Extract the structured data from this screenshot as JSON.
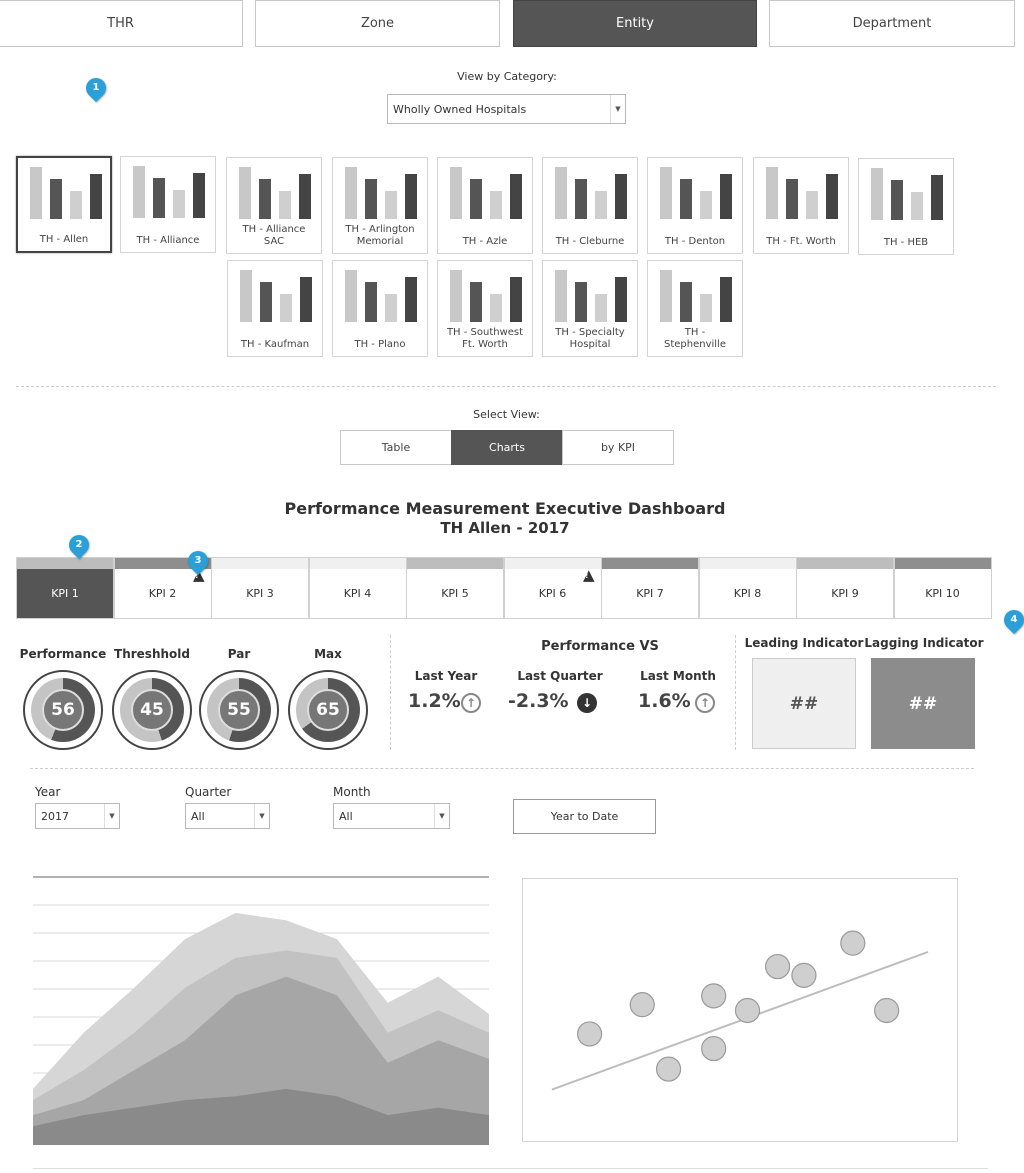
{
  "top_tabs": [
    {
      "label": "THR",
      "active": false
    },
    {
      "label": "Zone",
      "active": false
    },
    {
      "label": "Entity",
      "active": true
    },
    {
      "label": "Department",
      "active": false
    }
  ],
  "category": {
    "label": "View by Category:",
    "value": "Wholly Owned Hospitals"
  },
  "entities": [
    "TH - Allen",
    "TH - Alliance",
    "TH - Alliance\nSAC",
    "TH - Arlington\nMemorial",
    "TH - Azle",
    "TH - Cleburne",
    "TH - Denton",
    "TH - Ft. Worth",
    "TH - HEB",
    "TH - Kaufman",
    "TH - Plano",
    "TH - Southwest\nFt. Worth",
    "TH - Specialty\nHospital",
    "TH -\nStephenville"
  ],
  "markers": [
    "1",
    "2",
    "3",
    "4"
  ],
  "select_view": {
    "label": "Select View:",
    "options": [
      {
        "label": "Table",
        "active": false
      },
      {
        "label": "Charts",
        "active": true
      },
      {
        "label": "by KPI",
        "active": false
      }
    ]
  },
  "dashboard": {
    "title": "Performance Measurement Executive Dashboard",
    "subtitle": "TH Allen - 2017"
  },
  "kpi_tabs": [
    {
      "label": "KPI 1",
      "strip": "#bdbdbd",
      "active": true
    },
    {
      "label": "KPI 2",
      "strip": "#8e8e8e",
      "warning": true
    },
    {
      "label": "KPI 3",
      "strip": "#f0f0f0"
    },
    {
      "label": "KPI 4",
      "strip": "#f0f0f0"
    },
    {
      "label": "KPI 5",
      "strip": "#bdbdbd"
    },
    {
      "label": "KPI 6",
      "strip": "#f0f0f0",
      "warning": true
    },
    {
      "label": "KPI 7",
      "strip": "#8e8e8e"
    },
    {
      "label": "KPI 8",
      "strip": "#f0f0f0"
    },
    {
      "label": "KPI 9",
      "strip": "#bdbdbd"
    },
    {
      "label": "KPI 10",
      "strip": "#8e8e8e"
    }
  ],
  "gauges": [
    {
      "label": "Performance",
      "value": "56"
    },
    {
      "label": "Threshhold",
      "value": "45"
    },
    {
      "label": "Par",
      "value": "55"
    },
    {
      "label": "Max",
      "value": "65"
    }
  ],
  "performance_vs": {
    "title": "Performance VS",
    "items": [
      {
        "label": "Last Year",
        "value": "1.2%",
        "direction": "up"
      },
      {
        "label": "Last Quarter",
        "value": "-2.3%",
        "direction": "down"
      },
      {
        "label": "Last Month",
        "value": "1.6%",
        "direction": "up"
      }
    ]
  },
  "indicators": [
    {
      "label": "Leading Indicator",
      "value": "##",
      "bg": "#efefef",
      "fg": "#555"
    },
    {
      "label": "Lagging Indicator",
      "value": "##",
      "bg": "#8c8c8c",
      "fg": "#ffffff"
    }
  ],
  "filters": {
    "year": {
      "label": "Year",
      "value": "2017"
    },
    "quarter": {
      "label": "Quarter",
      "value": "All"
    },
    "month": {
      "label": "Month",
      "value": "All"
    },
    "ytd_button": "Year to Date"
  },
  "colors": {
    "active": "#555555",
    "marker": "#2a9fd8"
  },
  "chart_data": [
    {
      "type": "area",
      "x": [
        1,
        2,
        3,
        4,
        5,
        6,
        7,
        8,
        9,
        10
      ],
      "series": [
        {
          "values": [
            5,
            8,
            10,
            12,
            13,
            15,
            13,
            8,
            10,
            8
          ]
        },
        {
          "values": [
            8,
            12,
            20,
            28,
            40,
            45,
            40,
            22,
            28,
            23
          ]
        },
        {
          "values": [
            12,
            20,
            30,
            42,
            50,
            52,
            50,
            30,
            36,
            30
          ]
        },
        {
          "values": [
            15,
            30,
            42,
            55,
            62,
            60,
            55,
            38,
            45,
            35
          ]
        }
      ],
      "grid": true
    },
    {
      "type": "scatter",
      "points": [
        [
          1.0,
          3.7
        ],
        [
          2.4,
          4.7
        ],
        [
          3.1,
          2.5
        ],
        [
          4.3,
          3.2
        ],
        [
          4.3,
          5.0
        ],
        [
          5.2,
          4.5
        ],
        [
          6.0,
          6.0
        ],
        [
          6.7,
          5.7
        ],
        [
          8.0,
          6.8
        ],
        [
          8.9,
          4.5
        ]
      ],
      "trendline": {
        "x": [
          0,
          10
        ],
        "y": [
          1.8,
          6.5
        ]
      },
      "xlim": [
        0,
        10
      ],
      "ylim": [
        1,
        8
      ]
    }
  ]
}
